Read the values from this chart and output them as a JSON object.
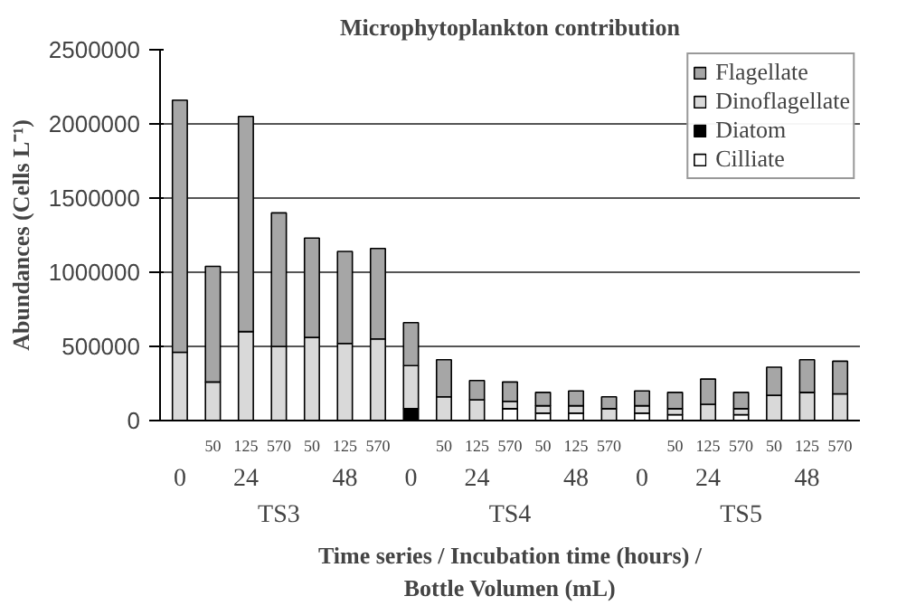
{
  "chart_data": {
    "type": "bar",
    "stacked": true,
    "title": "Microphytoplankton contribution",
    "xlabel": "Time series / Incubation time (hours) /\nBottle Volumen (mL)",
    "ylabel": "Abundances (Cells L⁻¹)",
    "categories": [
      null,
      "50",
      "125",
      "570",
      "50",
      "125",
      "570",
      null,
      "50",
      "125",
      "570",
      "50",
      "125",
      "570",
      null,
      "50",
      "125",
      "570",
      "50",
      "125",
      "570"
    ],
    "series": [
      {
        "name": "Cilliate",
        "color": "#ffffff",
        "values": [
          0,
          0,
          0,
          0,
          0,
          0,
          0,
          0,
          0,
          0,
          80000,
          50000,
          50000,
          0,
          50000,
          40000,
          0,
          40000,
          0,
          0,
          0
        ]
      },
      {
        "name": "Diatom",
        "color": "#000000",
        "values": [
          0,
          0,
          0,
          0,
          0,
          0,
          0,
          80000,
          0,
          0,
          0,
          0,
          0,
          0,
          0,
          0,
          0,
          0,
          0,
          0,
          0
        ]
      },
      {
        "name": "Dinoflagellate",
        "color": "#d9d9d9",
        "values": [
          460000,
          260000,
          600000,
          500000,
          560000,
          520000,
          550000,
          290000,
          160000,
          140000,
          50000,
          50000,
          50000,
          80000,
          50000,
          40000,
          110000,
          40000,
          170000,
          190000,
          180000
        ]
      },
      {
        "name": "Flagellate",
        "color": "#a6a6a6",
        "values": [
          1700000,
          780000,
          1450000,
          900000,
          670000,
          620000,
          610000,
          290000,
          250000,
          130000,
          130000,
          90000,
          100000,
          80000,
          100000,
          110000,
          170000,
          110000,
          190000,
          220000,
          220000
        ]
      }
    ],
    "annotations": [
      "0",
      "24",
      "48",
      "0",
      "24",
      "48",
      "0",
      "24",
      "48",
      "TS3",
      "TS4",
      "TS5"
    ],
    "ylim": [
      0,
      2500000
    ],
    "yticks": [
      0,
      500000,
      1000000,
      1500000,
      2000000,
      2500000
    ],
    "grid": "y",
    "legend": "top right"
  }
}
